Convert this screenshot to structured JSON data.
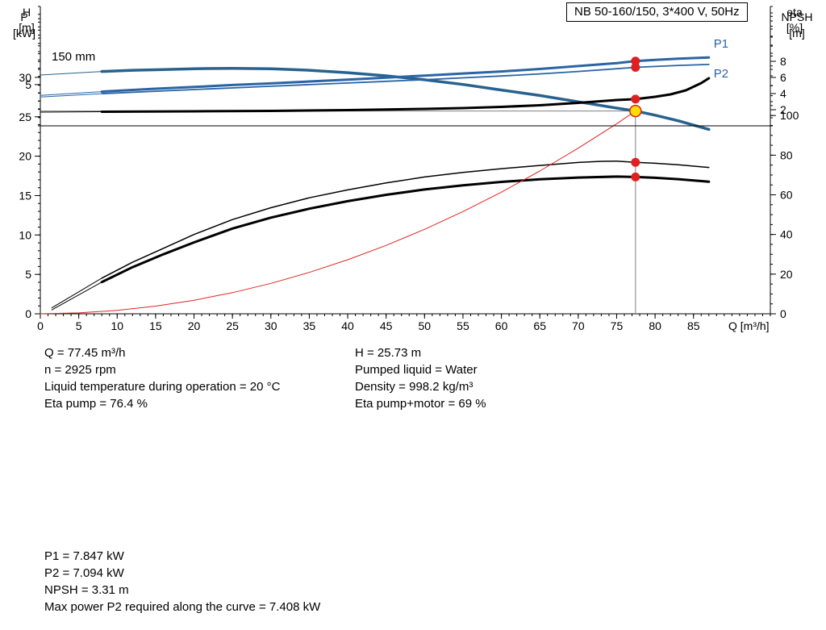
{
  "info_top": {
    "left": [
      "Q = 77.45 m³/h",
      "n = 2925 rpm",
      "Liquid temperature during operation = 20 °C",
      "Eta pump = 76.4 %"
    ],
    "right": [
      "H = 25.73 m",
      "Pumped liquid = Water",
      "Density = 998.2 kg/m³",
      "Eta pump+motor = 69 %"
    ]
  },
  "info_bottom": [
    "P1 = 7.847 kW",
    "P2 = 7.094 kW",
    "NPSH = 3.31 m",
    "Max power P2 required along the curve = 7.408 kW"
  ],
  "chart_data": [
    {
      "type": "line",
      "name": "QH and efficiency chart",
      "title": "NB 50-160/150, 3*400 V, 50Hz",
      "curve_label": "150 mm",
      "xlabel": "Q [m³/h]",
      "ylabel_left": "H [m]",
      "ylabel_left_lines": [
        "H",
        "[m]"
      ],
      "ylabel_right": "eta [%]",
      "ylabel_right_lines": [
        "eta",
        "[%]"
      ],
      "xlim": [
        0,
        95
      ],
      "ylim_left": [
        0,
        39
      ],
      "ylim_right": [
        0,
        155
      ],
      "grid": false,
      "legend": "none",
      "xticks_major": [
        0,
        5,
        10,
        15,
        20,
        25,
        30,
        35,
        40,
        45,
        50,
        55,
        60,
        65,
        70,
        75,
        80,
        85
      ],
      "xtick_minor_step": 1,
      "yticks_left_major": [
        0,
        5,
        10,
        15,
        20,
        25,
        30
      ],
      "ytick_left_minor_step": 1,
      "yticks_right_major": [
        0,
        20,
        40,
        60,
        80,
        100
      ],
      "ytick_right_minor_step": 5,
      "crosshair": {
        "x": 77.45,
        "y": 25.73,
        "color": "#7f7f7f"
      },
      "series": [
        {
          "name": "H-curve-leader",
          "axis": "left",
          "color": "#27628f",
          "width": 1,
          "x": [
            0,
            8
          ],
          "y": [
            30.3,
            30.75
          ]
        },
        {
          "name": "H-curve-150mm",
          "axis": "left",
          "color": "#27628f",
          "width": 3.5,
          "x": [
            8,
            12,
            16,
            20,
            25,
            30,
            35,
            40,
            45,
            50,
            55,
            60,
            65,
            70,
            75,
            77.45,
            80,
            83,
            87
          ],
          "y": [
            30.75,
            30.9,
            31.0,
            31.1,
            31.15,
            31.1,
            30.9,
            30.6,
            30.2,
            29.7,
            29.1,
            28.4,
            27.7,
            26.9,
            26.1,
            25.73,
            25.2,
            24.5,
            23.4
          ]
        },
        {
          "name": "eta-pump-leader",
          "axis": "right",
          "color": "#000000",
          "width": 1,
          "x": [
            1.5,
            8
          ],
          "y": [
            3,
            18
          ]
        },
        {
          "name": "eta-pump",
          "axis": "right",
          "color": "#000000",
          "width": 1.5,
          "x": [
            8,
            12,
            16,
            20,
            25,
            30,
            35,
            40,
            45,
            50,
            55,
            60,
            65,
            70,
            73,
            75,
            77.45,
            80,
            83,
            87
          ],
          "y": [
            18,
            26,
            33,
            40,
            47.5,
            53.5,
            58.5,
            62.5,
            66,
            69,
            71.3,
            73.2,
            74.8,
            76.3,
            76.9,
            77.0,
            76.4,
            75.9,
            75.2,
            73.8
          ]
        },
        {
          "name": "eta-pump-motor-leader",
          "axis": "right",
          "color": "#000000",
          "width": 1,
          "x": [
            1.5,
            8
          ],
          "y": [
            2,
            16
          ]
        },
        {
          "name": "eta-pump-motor",
          "axis": "right",
          "color": "#000000",
          "width": 3,
          "x": [
            8,
            12,
            16,
            20,
            25,
            30,
            35,
            40,
            45,
            50,
            55,
            60,
            65,
            70,
            75,
            77.45,
            80,
            83,
            87
          ],
          "y": [
            16,
            23.5,
            30,
            36,
            43,
            48.5,
            53,
            56.8,
            60,
            62.7,
            64.8,
            66.5,
            67.8,
            68.7,
            69.2,
            69.0,
            68.6,
            67.9,
            66.6
          ]
        },
        {
          "name": "system-curve",
          "axis": "left",
          "color": "#e02424",
          "width": 1,
          "x": [
            0,
            5,
            10,
            15,
            20,
            25,
            30,
            35,
            40,
            45,
            50,
            55,
            60,
            65,
            70,
            75,
            77.45
          ],
          "y": [
            0,
            0.11,
            0.43,
            0.97,
            1.72,
            2.68,
            3.86,
            5.25,
            6.86,
            8.68,
            10.72,
            12.97,
            15.44,
            18.12,
            21.01,
            24.12,
            25.73
          ]
        }
      ],
      "markers": [
        {
          "x": 77.45,
          "y": 76.4,
          "axis": "right",
          "style": "dot"
        },
        {
          "x": 77.45,
          "y": 69,
          "axis": "right",
          "style": "dot"
        },
        {
          "x": 77.45,
          "y": 25.73,
          "axis": "left",
          "style": "duty"
        }
      ]
    },
    {
      "type": "line",
      "name": "Power and NPSH chart",
      "xlabel": "",
      "ylabel_left": "P [kW]",
      "ylabel_left_lines": [
        "P",
        "[kW]"
      ],
      "ylabel_right": "NPSH [m]",
      "ylabel_right_lines": [
        "NPSH",
        "[m]"
      ],
      "xlim": [
        0,
        95
      ],
      "ylim_left": [
        0,
        13.7
      ],
      "ylim_right": [
        0,
        14
      ],
      "grid": false,
      "legend": "none",
      "xticks_major": [],
      "xtick_minor_step": 0,
      "yticks_left_major": [
        5
      ],
      "ytick_left_minor_step": 1,
      "yticks_right_major": [
        2,
        4,
        6,
        8
      ],
      "ytick_right_minor_step": 1,
      "series": [
        {
          "name": "P1-leader",
          "axis": "left",
          "color": "#2a64a5",
          "width": 1,
          "x": [
            0,
            8
          ],
          "y": [
            3.7,
            4.15
          ]
        },
        {
          "name": "P1",
          "axis": "left",
          "color": "#2a64a5",
          "width": 3,
          "label": "P1",
          "label_offset": [
            6,
            -12
          ],
          "x": [
            8,
            15,
            20,
            25,
            30,
            35,
            40,
            45,
            50,
            55,
            60,
            65,
            70,
            75,
            77.45,
            80,
            83,
            87
          ],
          "y": [
            4.15,
            4.5,
            4.72,
            4.95,
            5.15,
            5.38,
            5.6,
            5.85,
            6.1,
            6.35,
            6.6,
            6.9,
            7.25,
            7.6,
            7.847,
            8.0,
            8.15,
            8.3
          ]
        },
        {
          "name": "P2-leader",
          "axis": "left",
          "color": "#2a64a5",
          "width": 1,
          "x": [
            0,
            8
          ],
          "y": [
            3.5,
            3.9
          ]
        },
        {
          "name": "P2",
          "axis": "left",
          "color": "#2a64a5",
          "width": 1.8,
          "label": "P2",
          "label_offset": [
            6,
            16
          ],
          "x": [
            8,
            15,
            20,
            25,
            30,
            35,
            40,
            45,
            50,
            55,
            60,
            65,
            70,
            75,
            77.45,
            80,
            83,
            87
          ],
          "y": [
            3.9,
            4.2,
            4.4,
            4.6,
            4.8,
            5.0,
            5.2,
            5.4,
            5.6,
            5.82,
            6.05,
            6.3,
            6.6,
            6.93,
            7.094,
            7.2,
            7.33,
            7.45
          ]
        },
        {
          "name": "NPSH-leader",
          "axis": "right",
          "color": "#000000",
          "width": 1,
          "x": [
            0,
            8
          ],
          "y": [
            1.7,
            1.75
          ]
        },
        {
          "name": "NPSH",
          "axis": "right",
          "color": "#000000",
          "width": 3,
          "x": [
            8,
            20,
            30,
            40,
            50,
            55,
            60,
            65,
            70,
            75,
            77.45,
            80,
            82,
            84,
            86,
            87
          ],
          "y": [
            1.75,
            1.8,
            1.85,
            1.95,
            2.1,
            2.2,
            2.35,
            2.55,
            2.85,
            3.2,
            3.31,
            3.6,
            3.9,
            4.4,
            5.3,
            5.9
          ]
        }
      ],
      "markers": [
        {
          "x": 77.45,
          "y": 7.847,
          "axis": "left",
          "style": "dot"
        },
        {
          "x": 77.45,
          "y": 7.094,
          "axis": "left",
          "style": "dot"
        },
        {
          "x": 77.45,
          "y": 3.31,
          "axis": "right",
          "style": "dot"
        }
      ]
    }
  ]
}
